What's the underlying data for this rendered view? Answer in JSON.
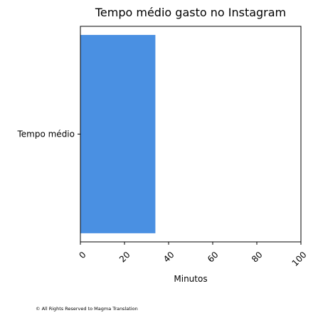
{
  "chart_data": {
    "type": "bar",
    "orientation": "horizontal",
    "title": "Tempo médio gasto no Instagram",
    "categories": [
      "Tempo médio"
    ],
    "values": [
      34
    ],
    "xlabel": "Minutos",
    "ylabel": "",
    "xlim": [
      0,
      100
    ],
    "xticks": [
      "0",
      "20",
      "40",
      "60",
      "80",
      "100"
    ],
    "xtick_rotation_deg": 45,
    "bar_color": "#4a90e2",
    "grid": false
  },
  "footer": {
    "copyright": "© All Rights Reserved to Magma Translation"
  }
}
